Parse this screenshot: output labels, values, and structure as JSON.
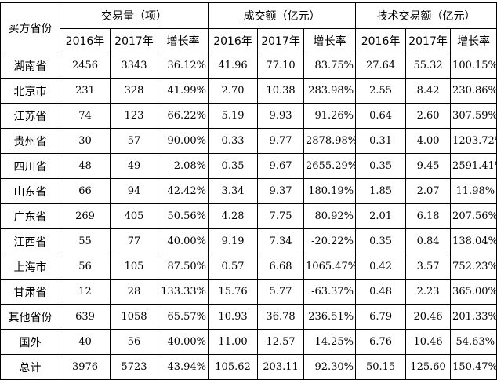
{
  "header": {
    "buyer": "买方省份",
    "group1": "交易量（项）",
    "group2": "成交额（亿元）",
    "group3": "技术交易额（亿元）",
    "sub": [
      "2016年",
      "2017年",
      "增长率",
      "2016年",
      "2017年",
      "增长率",
      "2016年",
      "2017年",
      "增长率"
    ]
  },
  "rows": [
    {
      "name": "湖南省",
      "cells": [
        "2456",
        "3343",
        "36.12%",
        "41.96",
        "77.10",
        "83.75%",
        "27.64",
        "55.32",
        "100.15%"
      ]
    },
    {
      "name": "北京市",
      "cells": [
        "231",
        "328",
        "41.99%",
        "2.70",
        "10.38",
        "283.98%",
        "2.55",
        "8.42",
        "230.86%"
      ]
    },
    {
      "name": "江苏省",
      "cells": [
        "74",
        "123",
        "66.22%",
        "5.19",
        "9.93",
        "91.26%",
        "0.64",
        "2.60",
        "307.59%"
      ]
    },
    {
      "name": "贵州省",
      "cells": [
        "30",
        "57",
        "90.00%",
        "0.33",
        "9.77",
        "2878.98%",
        "0.31",
        "4.00",
        "1203.72%"
      ]
    },
    {
      "name": "四川省",
      "cells": [
        "48",
        "49",
        "2.08%",
        "0.35",
        "9.67",
        "2655.29%",
        "0.35",
        "9.45",
        "2591.41%"
      ]
    },
    {
      "name": "山东省",
      "cells": [
        "66",
        "94",
        "42.42%",
        "3.34",
        "9.37",
        "180.19%",
        "1.85",
        "2.07",
        "11.98%"
      ]
    },
    {
      "name": "广东省",
      "cells": [
        "269",
        "405",
        "50.56%",
        "4.28",
        "7.75",
        "80.92%",
        "2.01",
        "6.18",
        "207.56%"
      ]
    },
    {
      "name": "江西省",
      "cells": [
        "55",
        "77",
        "40.00%",
        "9.19",
        "7.34",
        "-20.22%",
        "0.35",
        "0.84",
        "138.04%"
      ]
    },
    {
      "name": "上海市",
      "cells": [
        "56",
        "105",
        "87.50%",
        "0.57",
        "6.68",
        "1065.47%",
        "0.42",
        "3.57",
        "752.23%"
      ]
    },
    {
      "name": "甘肃省",
      "cells": [
        "12",
        "28",
        "133.33%",
        "15.76",
        "5.77",
        "-63.37%",
        "0.48",
        "2.23",
        "365.00%"
      ]
    },
    {
      "name": "其他省份",
      "cells": [
        "639",
        "1058",
        "65.57%",
        "10.93",
        "36.78",
        "236.51%",
        "6.79",
        "20.46",
        "201.33%"
      ]
    },
    {
      "name": "国外",
      "cells": [
        "40",
        "56",
        "40.00%",
        "11.00",
        "12.57",
        "14.25%",
        "6.76",
        "10.46",
        "54.63%"
      ]
    },
    {
      "name": "总计",
      "cells": [
        "3976",
        "5723",
        "43.94%",
        "105.62",
        "203.11",
        "92.30%",
        "50.15",
        "125.60",
        "150.47%"
      ]
    }
  ]
}
